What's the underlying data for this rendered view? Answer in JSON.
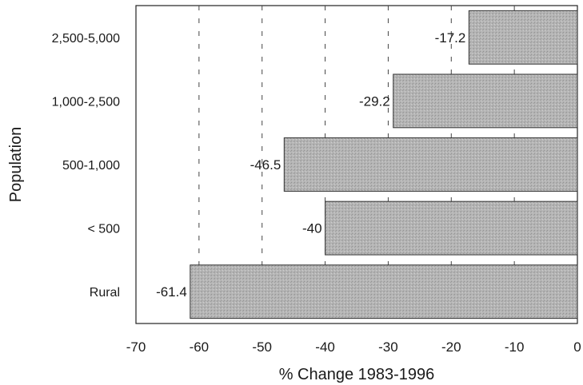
{
  "chart_data": {
    "type": "bar",
    "orientation": "horizontal",
    "categories": [
      "2,500-5,000",
      "1,000-2,500",
      "500-1,000",
      "< 500",
      "Rural"
    ],
    "values": [
      -17.2,
      -29.2,
      -46.5,
      -40,
      -61.4
    ],
    "data_labels": [
      "-17.2",
      "-29.2",
      "-46.5",
      "-40",
      "-61.4"
    ],
    "xlabel": "% Change 1983-1996",
    "ylabel": "Population",
    "xlim": [
      -70,
      0
    ],
    "x_ticks": [
      "-70",
      "-60",
      "-50",
      "-40",
      "-30",
      "-20",
      "-10",
      "0"
    ],
    "grid": "vertical dashed",
    "bar_color": "#b5b5b5"
  }
}
